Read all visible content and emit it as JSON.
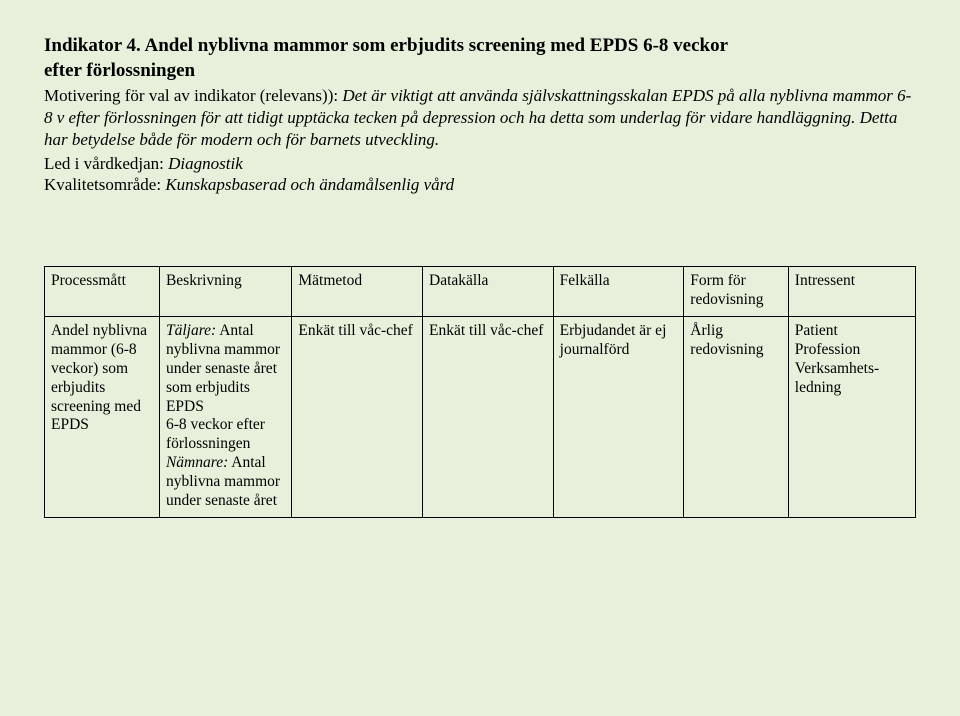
{
  "heading_line1": "Indikator 4. Andel nyblivna mammor som erbjudits screening med EPDS 6-8 veckor",
  "heading_line2": "efter förlossningen",
  "motivering_label": "Motivering för val av indikator (relevans)): ",
  "motivering_text": "Det är viktigt att använda självskattningsskalan EPDS på alla nyblivna mammor 6-8 v efter förlossningen för att tidigt upptäcka tecken på depression och ha detta som underlag för vidare handläggning. Detta har betydelse både för modern och för barnets utveckling.",
  "led_label": "Led i vårdkedjan: ",
  "led_value": "Diagnostik",
  "kval_label": "Kvalitetsområde: ",
  "kval_value": "Kunskapsbaserad och ändamålsenlig vård",
  "table": {
    "headers": [
      "Processmått",
      "Beskrivning",
      "Mätmetod",
      "Datakälla",
      "Felkälla",
      "Form för redovisning",
      "Intressent"
    ],
    "row": {
      "c0": "Andel nyblivna mammor (6-8 veckor) som erbjudits screening med EPDS",
      "c1_taljare_label": "Täljare:",
      "c1_taljare_text": " Antal nyblivna mammor under senaste året som erbjudits EPDS",
      "c1_mid": "6-8 veckor efter förlossningen",
      "c1_namnare_label": "Nämnare:",
      "c1_namnare_text": " Antal nyblivna mammor under senaste året",
      "c2": "Enkät till våc-chef",
      "c3": "Enkät till våc-chef",
      "c4": "Erbjudandet är ej journalförd",
      "c5": "Årlig redovisning",
      "c6": "Patient Profession Verksamhets-ledning"
    }
  }
}
